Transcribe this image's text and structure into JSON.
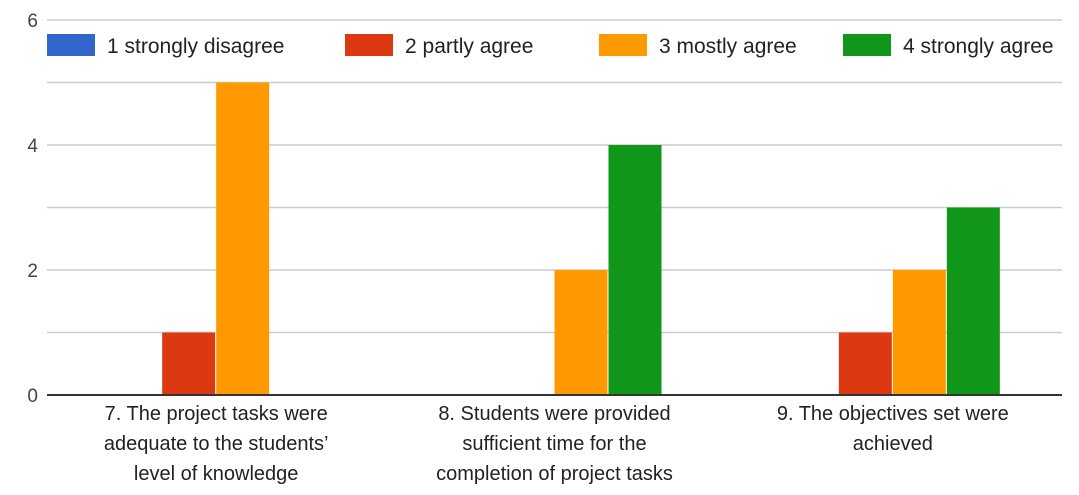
{
  "chart_data": {
    "type": "bar",
    "title": "",
    "xlabel": "",
    "ylabel": "",
    "ylim": [
      0,
      6
    ],
    "yticks": [
      "0",
      "2",
      "4",
      "6"
    ],
    "grid": true,
    "legend_position": "top",
    "categories": [
      [
        "7. The project tasks were",
        "adequate to the students’",
        "level of knowledge"
      ],
      [
        "8. Students were provided",
        "sufficient time for the",
        "completion of project tasks"
      ],
      [
        "9. The objectives set were",
        "achieved"
      ]
    ],
    "series": [
      {
        "name": "1 strongly disagree",
        "color": "#3366cc",
        "values": [
          0,
          0,
          0
        ]
      },
      {
        "name": "2 partly agree",
        "color": "#dc3912",
        "values": [
          1,
          0,
          1
        ]
      },
      {
        "name": "3 mostly agree",
        "color": "#ff9900",
        "values": [
          5,
          2,
          2
        ]
      },
      {
        "name": "4 strongly agree",
        "color": "#109618",
        "values": [
          0,
          4,
          3
        ]
      }
    ],
    "colors": {
      "grid": "#cccccc",
      "baseline": "#333333"
    }
  }
}
